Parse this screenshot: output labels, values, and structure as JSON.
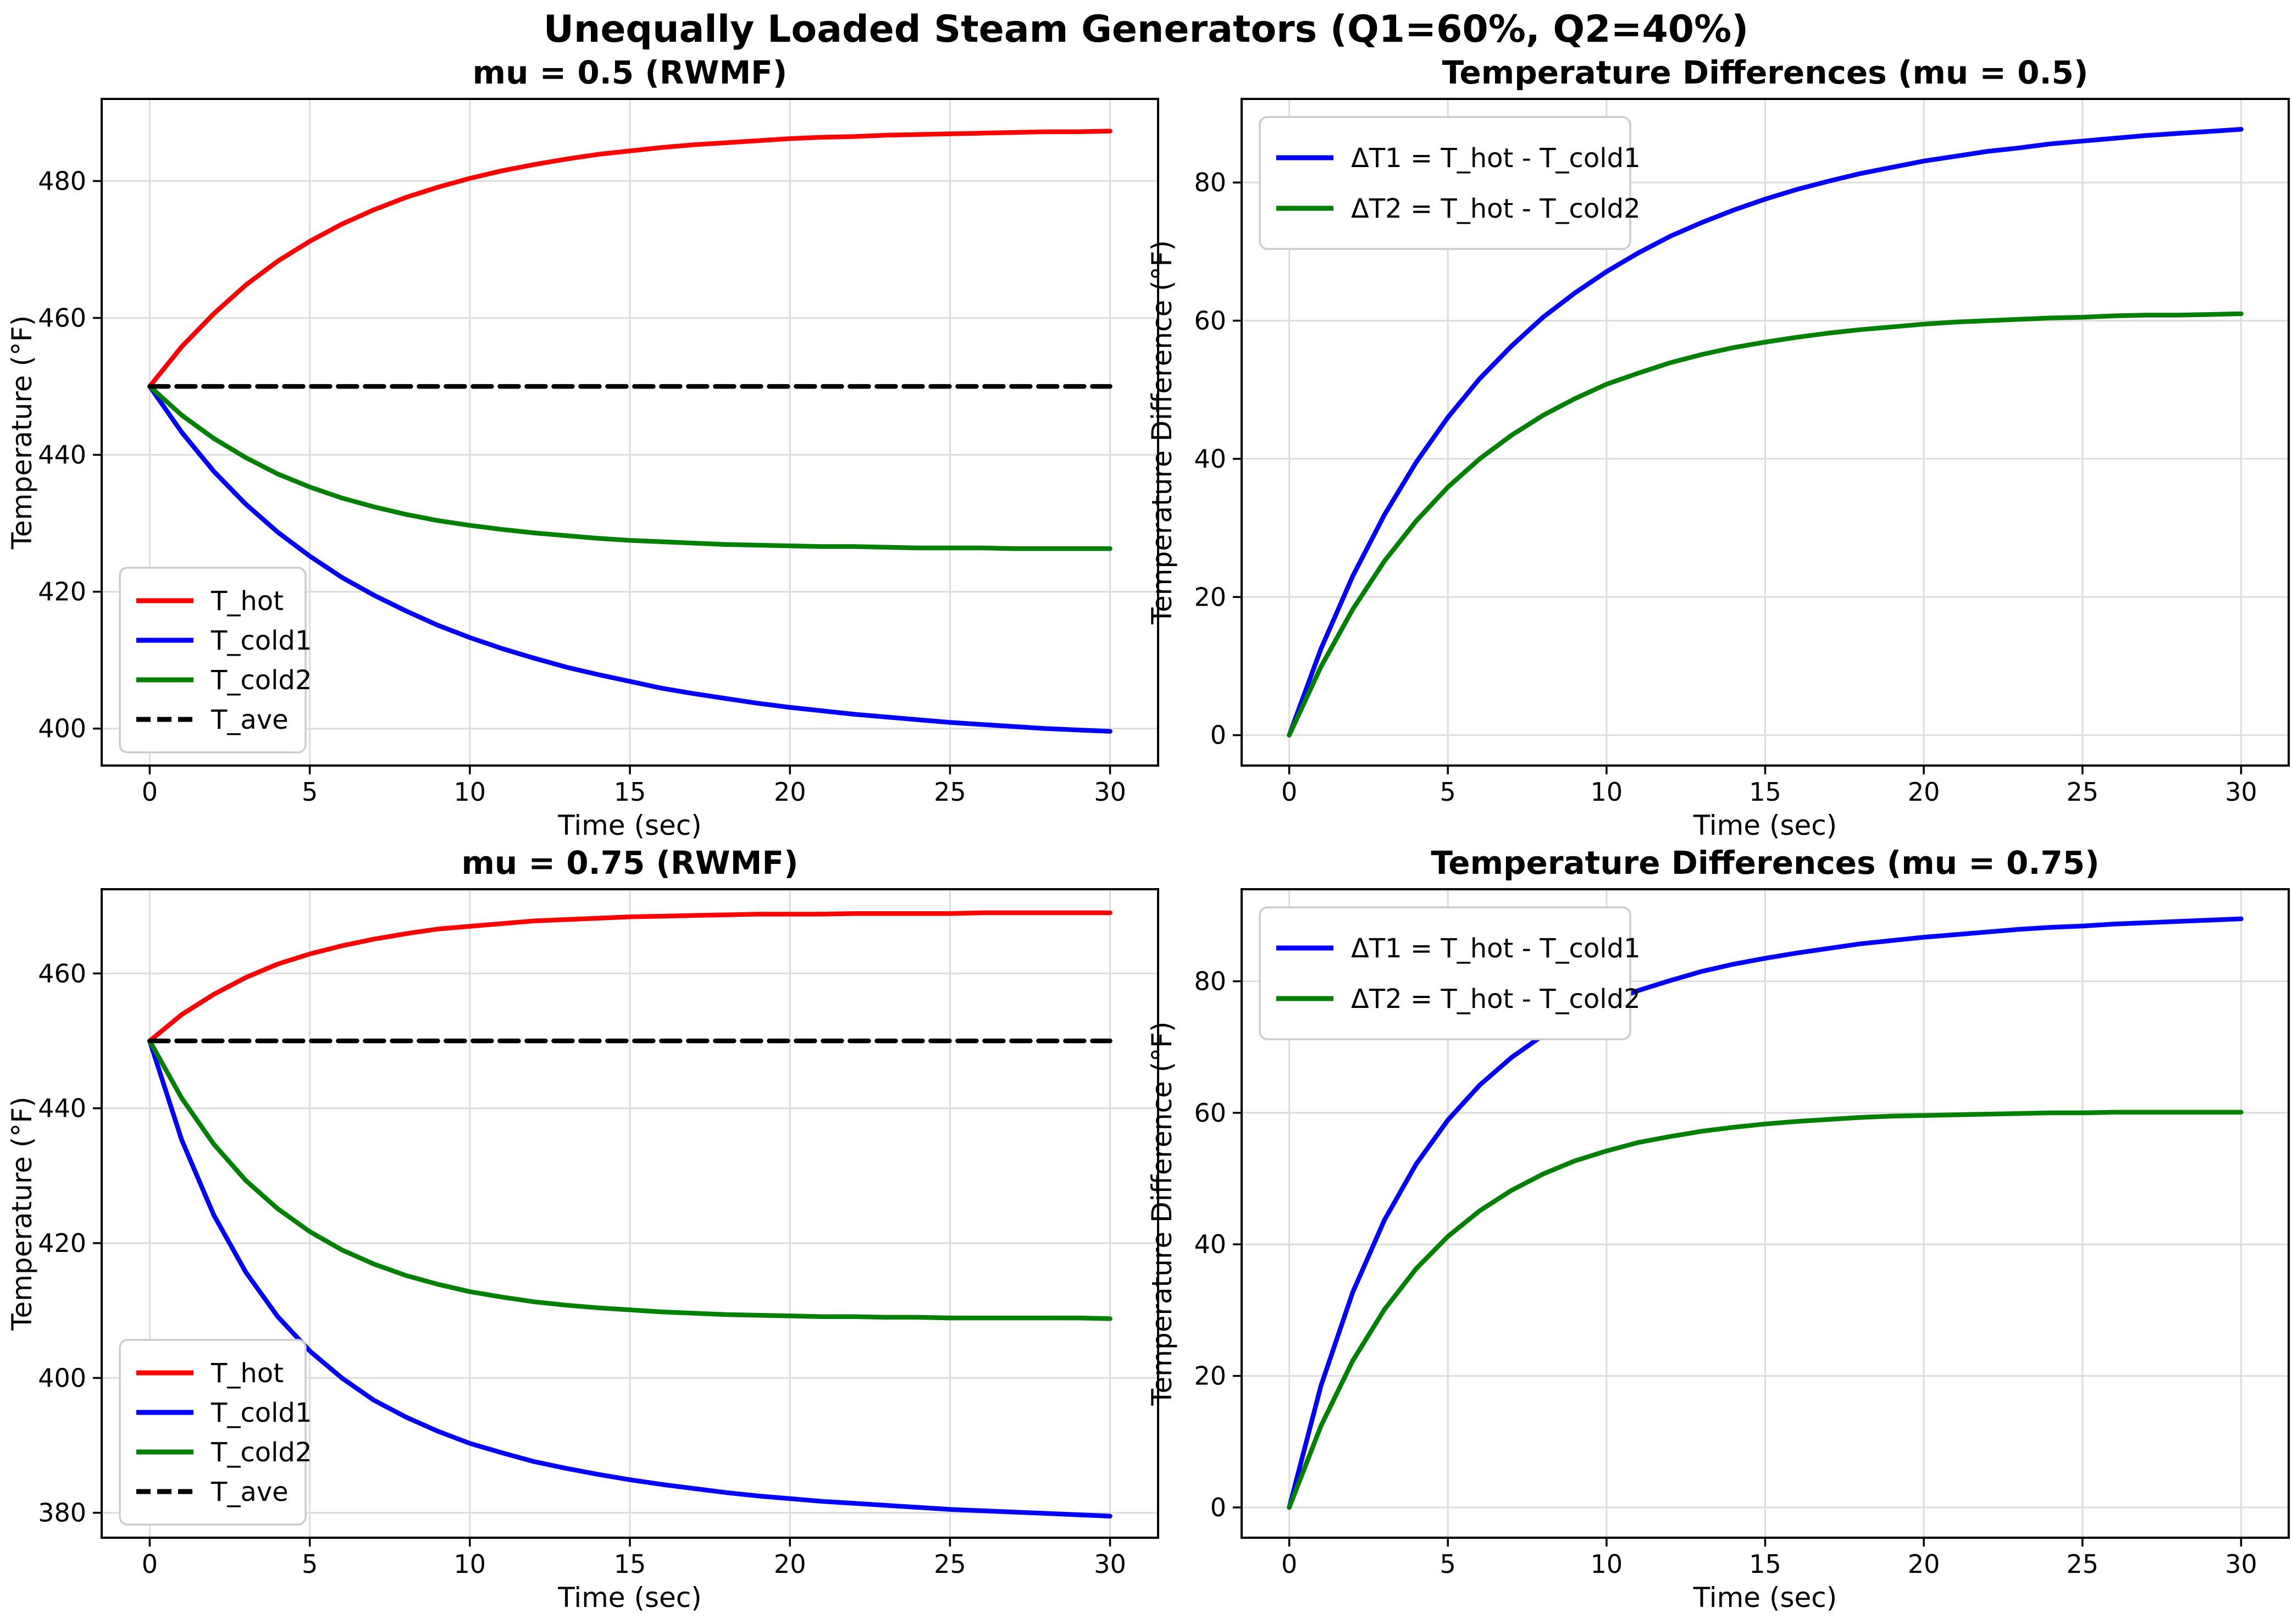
{
  "figure": {
    "suptitle": "Unequally Loaded Steam Generators (Q1=60%, Q2=40%)",
    "background": "#ffffff"
  },
  "colors": {
    "hot": "#ff0000",
    "cold1": "#0000ff",
    "cold2": "#008000",
    "ave": "#000000",
    "grid": "#dcdcdc",
    "spine": "#000000",
    "legend_border": "#cccccc"
  },
  "chart_data": [
    {
      "id": "tl",
      "type": "line",
      "title": "mu = 0.5 (RWMF)",
      "xlabel": "Time (sec)",
      "ylabel": "Temperature (°F)",
      "xlim": [
        -1.5,
        31.5
      ],
      "ylim": [
        394.6,
        492.0
      ],
      "xticks": [
        0,
        5,
        10,
        15,
        20,
        25,
        30
      ],
      "yticks": [
        400,
        420,
        440,
        460,
        480
      ],
      "grid": true,
      "legend_loc": "lower left",
      "series": [
        {
          "name": "T_hot",
          "label": "T_hot",
          "color": "#ff0000",
          "dash": false,
          "x": [
            0,
            1,
            2,
            3,
            4,
            5,
            6,
            7,
            8,
            9,
            10,
            11,
            12,
            13,
            14,
            15,
            16,
            17,
            18,
            19,
            20,
            21,
            22,
            23,
            24,
            25,
            26,
            27,
            28,
            29,
            30
          ],
          "y": [
            450,
            455.8,
            460.6,
            464.8,
            468.3,
            471.2,
            473.7,
            475.8,
            477.6,
            479.1,
            480.4,
            481.5,
            482.4,
            483.2,
            483.9,
            484.4,
            484.9,
            485.3,
            485.6,
            485.9,
            486.2,
            486.4,
            486.5,
            486.7,
            486.8,
            486.9,
            487.0,
            487.1,
            487.2,
            487.2,
            487.3
          ]
        },
        {
          "name": "T_cold1",
          "label": "T_cold1",
          "color": "#0000ff",
          "dash": false,
          "x": [
            0,
            1,
            2,
            3,
            4,
            5,
            6,
            7,
            8,
            9,
            10,
            11,
            12,
            13,
            14,
            15,
            16,
            17,
            18,
            19,
            20,
            21,
            22,
            23,
            24,
            25,
            26,
            27,
            28,
            29,
            30
          ],
          "y": [
            450,
            443.3,
            437.6,
            432.8,
            428.7,
            425.2,
            422.1,
            419.5,
            417.2,
            415.1,
            413.3,
            411.7,
            410.3,
            409.0,
            407.9,
            406.9,
            405.9,
            405.1,
            404.4,
            403.7,
            403.1,
            402.6,
            402.1,
            401.7,
            401.3,
            400.9,
            400.6,
            400.3,
            400.0,
            399.8,
            399.6
          ]
        },
        {
          "name": "T_cold2",
          "label": "T_cold2",
          "color": "#008000",
          "dash": false,
          "x": [
            0,
            1,
            2,
            3,
            4,
            5,
            6,
            7,
            8,
            9,
            10,
            11,
            12,
            13,
            14,
            15,
            16,
            17,
            18,
            19,
            20,
            21,
            22,
            23,
            24,
            25,
            26,
            27,
            28,
            29,
            30
          ],
          "y": [
            450,
            445.8,
            442.4,
            439.6,
            437.2,
            435.3,
            433.7,
            432.4,
            431.3,
            430.4,
            429.7,
            429.1,
            428.6,
            428.2,
            427.8,
            427.5,
            427.3,
            427.1,
            426.9,
            426.8,
            426.7,
            426.6,
            426.6,
            426.5,
            426.4,
            426.4,
            426.4,
            426.3,
            426.3,
            426.3,
            426.3
          ]
        },
        {
          "name": "T_ave",
          "label": "T_ave",
          "color": "#000000",
          "dash": true,
          "x": [
            0,
            30
          ],
          "y": [
            450,
            450
          ]
        }
      ]
    },
    {
      "id": "tr",
      "type": "line",
      "title": "Temperature Differences (mu = 0.5)",
      "xlabel": "Time (sec)",
      "ylabel": "Temperature Difference (°F)",
      "xlim": [
        -1.5,
        31.5
      ],
      "ylim": [
        -4.4,
        92.1
      ],
      "xticks": [
        0,
        5,
        10,
        15,
        20,
        25,
        30
      ],
      "yticks": [
        0,
        20,
        40,
        60,
        80
      ],
      "grid": true,
      "legend_loc": "upper left",
      "series": [
        {
          "name": "dT1",
          "label": "ΔT1 = T_hot - T_cold1",
          "color": "#0000ff",
          "dash": false,
          "x": [
            0,
            1,
            2,
            3,
            4,
            5,
            6,
            7,
            8,
            9,
            10,
            11,
            12,
            13,
            14,
            15,
            16,
            17,
            18,
            19,
            20,
            21,
            22,
            23,
            24,
            25,
            26,
            27,
            28,
            29,
            30
          ],
          "y": [
            0,
            12.5,
            23.0,
            31.9,
            39.5,
            46.0,
            51.6,
            56.3,
            60.5,
            64.0,
            67.1,
            69.8,
            72.2,
            74.2,
            76.0,
            77.6,
            79.0,
            80.2,
            81.3,
            82.2,
            83.1,
            83.8,
            84.5,
            85.0,
            85.6,
            86.0,
            86.4,
            86.8,
            87.1,
            87.4,
            87.7
          ]
        },
        {
          "name": "dT2",
          "label": "ΔT2 = T_hot - T_cold2",
          "color": "#008000",
          "dash": false,
          "x": [
            0,
            1,
            2,
            3,
            4,
            5,
            6,
            7,
            8,
            9,
            10,
            11,
            12,
            13,
            14,
            15,
            16,
            17,
            18,
            19,
            20,
            21,
            22,
            23,
            24,
            25,
            26,
            27,
            28,
            29,
            30
          ],
          "y": [
            0,
            9.9,
            18.2,
            25.2,
            31.0,
            35.9,
            40.0,
            43.4,
            46.3,
            48.7,
            50.8,
            52.4,
            53.9,
            55.1,
            56.1,
            56.9,
            57.6,
            58.2,
            58.7,
            59.1,
            59.5,
            59.8,
            60.0,
            60.2,
            60.4,
            60.5,
            60.7,
            60.8,
            60.8,
            60.9,
            61.0
          ]
        }
      ]
    },
    {
      "id": "bl",
      "type": "line",
      "title": "mu = 0.75 (RWMF)",
      "xlabel": "Time (sec)",
      "ylabel": "Temperature (°F)",
      "xlim": [
        -1.5,
        31.5
      ],
      "ylim": [
        376.3,
        472.5
      ],
      "xticks": [
        0,
        5,
        10,
        15,
        20,
        25,
        30
      ],
      "yticks": [
        380,
        400,
        420,
        440,
        460
      ],
      "grid": true,
      "legend_loc": "lower left",
      "series": [
        {
          "name": "T_hot",
          "label": "T_hot",
          "color": "#ff0000",
          "dash": false,
          "x": [
            0,
            1,
            2,
            3,
            4,
            5,
            6,
            7,
            8,
            9,
            10,
            11,
            12,
            13,
            14,
            15,
            16,
            17,
            18,
            19,
            20,
            21,
            22,
            23,
            24,
            25,
            26,
            27,
            28,
            29,
            30
          ],
          "y": [
            450,
            453.9,
            456.9,
            459.4,
            461.4,
            462.9,
            464.1,
            465.1,
            465.9,
            466.6,
            467.0,
            467.4,
            467.8,
            468.0,
            468.2,
            468.4,
            468.5,
            468.6,
            468.7,
            468.8,
            468.8,
            468.8,
            468.9,
            468.9,
            468.9,
            468.9,
            469.0,
            469.0,
            469.0,
            469.0,
            469.0
          ]
        },
        {
          "name": "T_cold1",
          "label": "T_cold1",
          "color": "#0000ff",
          "dash": false,
          "x": [
            0,
            1,
            2,
            3,
            4,
            5,
            6,
            7,
            8,
            9,
            10,
            11,
            12,
            13,
            14,
            15,
            16,
            17,
            18,
            19,
            20,
            21,
            22,
            23,
            24,
            25,
            26,
            27,
            28,
            29,
            30
          ],
          "y": [
            450,
            435.3,
            424.2,
            415.7,
            409.1,
            404.0,
            400.0,
            396.7,
            394.2,
            392.1,
            390.3,
            388.9,
            387.6,
            386.6,
            385.7,
            384.9,
            384.2,
            383.6,
            383.0,
            382.5,
            382.1,
            381.7,
            381.4,
            381.1,
            380.8,
            380.5,
            380.3,
            380.1,
            379.9,
            379.7,
            379.5
          ]
        },
        {
          "name": "T_cold2",
          "label": "T_cold2",
          "color": "#008000",
          "dash": false,
          "x": [
            0,
            1,
            2,
            3,
            4,
            5,
            6,
            7,
            8,
            9,
            10,
            11,
            12,
            13,
            14,
            15,
            16,
            17,
            18,
            19,
            20,
            21,
            22,
            23,
            24,
            25,
            26,
            27,
            28,
            29,
            30
          ],
          "y": [
            450,
            441.5,
            434.7,
            429.3,
            425.1,
            421.7,
            419.0,
            416.9,
            415.2,
            413.9,
            412.8,
            412.0,
            411.3,
            410.8,
            410.4,
            410.1,
            409.8,
            409.6,
            409.4,
            409.3,
            409.2,
            409.1,
            409.1,
            409.0,
            409.0,
            408.9,
            408.9,
            408.9,
            408.9,
            408.9,
            408.8
          ]
        },
        {
          "name": "T_ave",
          "label": "T_ave",
          "color": "#000000",
          "dash": true,
          "x": [
            0,
            30
          ],
          "y": [
            450,
            450
          ]
        }
      ]
    },
    {
      "id": "br",
      "type": "line",
      "title": "Temperature Differences (mu = 0.75)",
      "xlabel": "Time (sec)",
      "ylabel": "Temperature Difference (°F)",
      "xlim": [
        -1.5,
        31.5
      ],
      "ylim": [
        -4.6,
        94.0
      ],
      "xticks": [
        0,
        5,
        10,
        15,
        20,
        25,
        30
      ],
      "yticks": [
        0,
        20,
        40,
        60,
        80
      ],
      "grid": true,
      "legend_loc": "upper left",
      "series": [
        {
          "name": "dT1",
          "label": "ΔT1 = T_hot - T_cold1",
          "color": "#0000ff",
          "dash": false,
          "x": [
            0,
            1,
            2,
            3,
            4,
            5,
            6,
            7,
            8,
            9,
            10,
            11,
            12,
            13,
            14,
            15,
            16,
            17,
            18,
            19,
            20,
            21,
            22,
            23,
            24,
            25,
            26,
            27,
            28,
            29,
            30
          ],
          "y": [
            0,
            18.5,
            32.7,
            43.7,
            52.2,
            58.9,
            64.2,
            68.4,
            71.8,
            74.5,
            76.7,
            78.6,
            80.1,
            81.5,
            82.6,
            83.5,
            84.3,
            85.0,
            85.7,
            86.2,
            86.7,
            87.1,
            87.5,
            87.9,
            88.2,
            88.4,
            88.7,
            88.9,
            89.1,
            89.3,
            89.5
          ]
        },
        {
          "name": "dT2",
          "label": "ΔT2 = T_hot - T_cold2",
          "color": "#008000",
          "dash": false,
          "x": [
            0,
            1,
            2,
            3,
            4,
            5,
            6,
            7,
            8,
            9,
            10,
            11,
            12,
            13,
            14,
            15,
            16,
            17,
            18,
            19,
            20,
            21,
            22,
            23,
            24,
            25,
            26,
            27,
            28,
            29,
            30
          ],
          "y": [
            0,
            12.4,
            22.3,
            30.1,
            36.3,
            41.2,
            45.1,
            48.2,
            50.7,
            52.7,
            54.2,
            55.5,
            56.4,
            57.2,
            57.8,
            58.3,
            58.7,
            59.0,
            59.3,
            59.5,
            59.6,
            59.7,
            59.8,
            59.9,
            60.0,
            60.0,
            60.1,
            60.1,
            60.1,
            60.1,
            60.1
          ]
        }
      ]
    }
  ]
}
